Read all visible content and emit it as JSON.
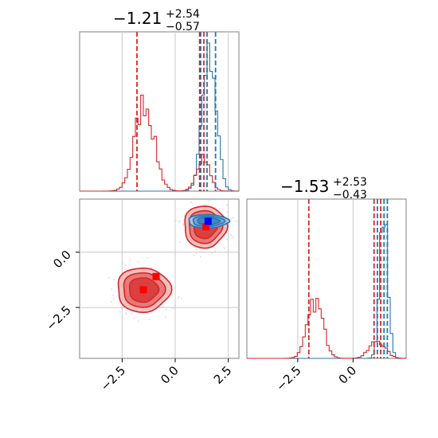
{
  "chart_data": {
    "type": "corner",
    "panels": [
      {
        "panel": "hist-x",
        "type": "histogram",
        "title": {
          "value": "−1.21",
          "plus": "+2.54",
          "minus": "−0.57"
        },
        "xlim": [
          -4.5,
          3.0
        ],
        "series": [
          {
            "color": "#1f77b4",
            "peaks": [
              {
                "center": 1.6,
                "sigma": 0.32,
                "height": 1.0
              }
            ],
            "quantiles": [
              1.2,
              1.5,
              1.9
            ]
          },
          {
            "color": "#d62728",
            "peaks": [
              {
                "center": -1.45,
                "sigma": 0.45,
                "height": 0.6
              },
              {
                "center": 1.3,
                "sigma": 0.3,
                "height": 0.24
              }
            ],
            "quantiles": [
              -1.8,
              1.15,
              1.35
            ]
          }
        ]
      },
      {
        "panel": "scatter-xy",
        "type": "contour",
        "xlim": [
          -4.5,
          3.0
        ],
        "ylim": [
          -4.8,
          2.4
        ],
        "xticks": [
          "−2.5",
          "0.0",
          "2.5"
        ],
        "yticks": [
          "0.0",
          "−2.5"
        ],
        "clusters": [
          {
            "color": "#d62728",
            "cx": -1.5,
            "cy": -1.7,
            "rx": 1.25,
            "ry": 1.0,
            "markers": [
              [
                -1.5,
                -1.7
              ],
              [
                -0.9,
                -1.1
              ]
            ]
          },
          {
            "color": "#d62728",
            "cx": 1.4,
            "cy": 1.15,
            "rx": 1.0,
            "ry": 0.95,
            "markers": [
              [
                1.45,
                1.15
              ]
            ]
          },
          {
            "color": "#1f77b4",
            "cx": 1.55,
            "cy": 1.4,
            "rx": 0.95,
            "ry": 0.3,
            "markers": [
              [
                1.55,
                1.4
              ]
            ]
          }
        ]
      },
      {
        "panel": "hist-y",
        "type": "histogram",
        "title": {
          "value": "−1.53",
          "plus": "+2.53",
          "minus": "−0.43"
        },
        "xlim": [
          -4.8,
          2.4
        ],
        "xticks": [
          "−2.5",
          "0.0"
        ],
        "series": [
          {
            "color": "#1f77b4",
            "peaks": [
              {
                "center": 1.4,
                "sigma": 0.18,
                "height": 1.0
              }
            ],
            "quantiles": [
              1.1,
              1.4,
              1.55
            ]
          },
          {
            "color": "#d62728",
            "peaks": [
              {
                "center": -1.7,
                "sigma": 0.35,
                "height": 0.38
              },
              {
                "center": 1.1,
                "sigma": 0.35,
                "height": 0.12
              }
            ],
            "quantiles": [
              -2.0,
              0.95,
              1.25
            ]
          }
        ]
      }
    ]
  }
}
